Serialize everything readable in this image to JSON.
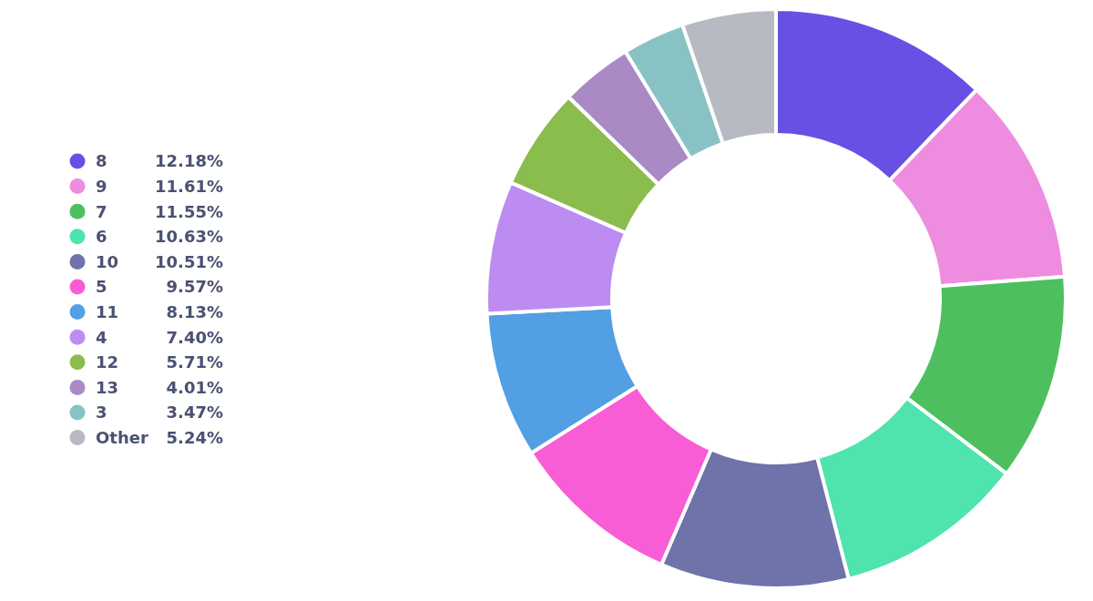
{
  "chart_data": {
    "type": "donut",
    "categories": [
      "8",
      "9",
      "7",
      "6",
      "10",
      "5",
      "11",
      "4",
      "12",
      "13",
      "3",
      "Other"
    ],
    "values": [
      12.18,
      11.61,
      11.55,
      10.63,
      10.51,
      9.57,
      8.13,
      7.4,
      5.71,
      4.01,
      3.47,
      5.24
    ],
    "value_labels": [
      "12.18%",
      "11.61%",
      "11.55%",
      "10.63%",
      "10.51%",
      "9.57%",
      "8.13%",
      "7.40%",
      "5.71%",
      "4.01%",
      "3.47%",
      "5.24%"
    ],
    "colors": [
      "#6751e4",
      "#ee8cdf",
      "#4dbf5f",
      "#4fe3ae",
      "#7072aa",
      "#f95dd5",
      "#529fe3",
      "#bd8cf0",
      "#8abd4d",
      "#a98ac5",
      "#89c2c5",
      "#b8bac3"
    ],
    "legend": "left"
  }
}
